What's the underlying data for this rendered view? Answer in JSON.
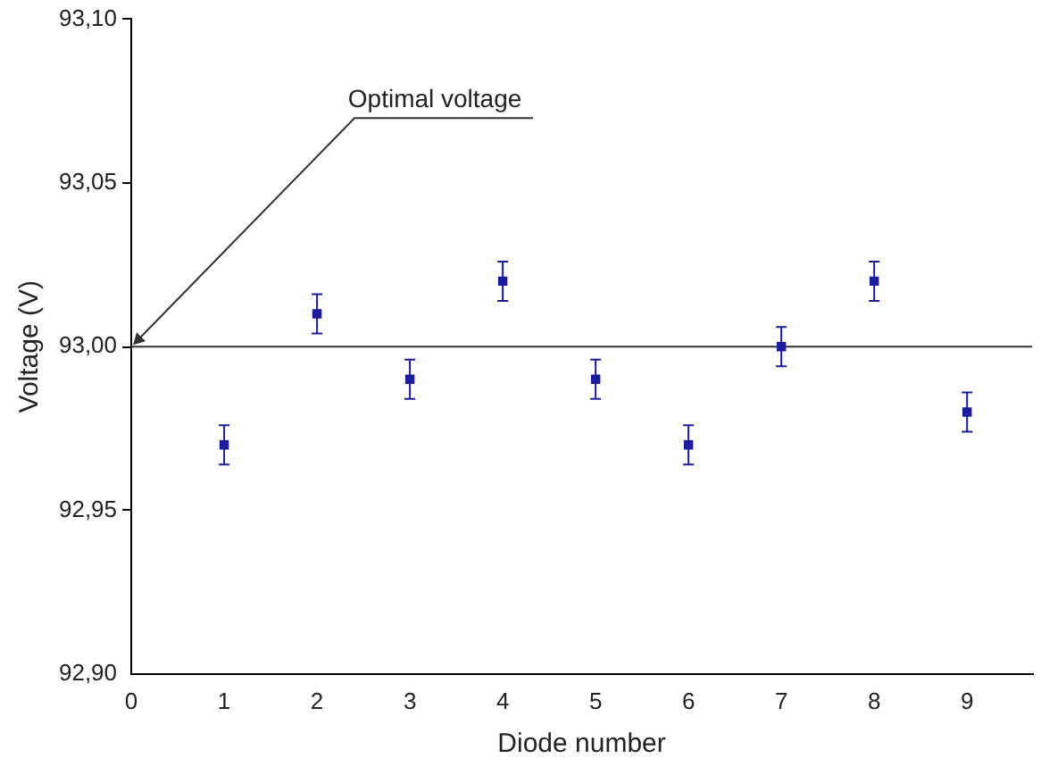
{
  "chart_data": {
    "type": "scatter",
    "xlabel": "Diode number",
    "ylabel": "Voltage (V)",
    "x": [
      1,
      2,
      3,
      4,
      5,
      6,
      7,
      8,
      9
    ],
    "series": [
      {
        "color": "#1c1c9c",
        "values": [
          92.97,
          93.01,
          92.99,
          93.02,
          92.99,
          92.97,
          93.0,
          93.02,
          92.98
        ],
        "errors": [
          0.006,
          0.006,
          0.006,
          0.006,
          0.006,
          0.006,
          0.006,
          0.006,
          0.006
        ]
      }
    ],
    "xlim": [
      0,
      9.7
    ],
    "xticks": [
      0,
      1,
      2,
      3,
      4,
      5,
      6,
      7,
      8,
      9
    ],
    "ylim": [
      92.9,
      93.1
    ],
    "yticks": [
      {
        "value": 92.9,
        "label": "92,90"
      },
      {
        "value": 92.95,
        "label": "92,95"
      },
      {
        "value": 93.0,
        "label": "93,00"
      },
      {
        "value": 93.05,
        "label": "93,05"
      },
      {
        "value": 93.1,
        "label": "93,10"
      }
    ],
    "ref_lines": [
      {
        "axis": "y",
        "value": 93.0,
        "label": "Optimal voltage",
        "color": "#333333"
      }
    ],
    "grid": false,
    "legend": false,
    "marker": "square"
  }
}
